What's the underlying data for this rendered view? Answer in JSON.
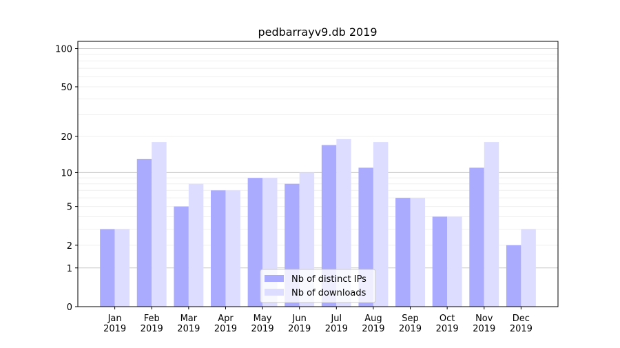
{
  "chart_data": {
    "type": "bar",
    "title": "pedbarrayv9.db 2019",
    "xlabel": "",
    "ylabel": "",
    "yscale": "log(1+y)",
    "ylim": [
      0,
      114
    ],
    "yticks": [
      0,
      1,
      2,
      5,
      10,
      20,
      50,
      100
    ],
    "grid": true,
    "legend_position": "bottom-center",
    "categories": [
      "Jan\n2019",
      "Feb\n2019",
      "Mar\n2019",
      "Apr\n2019",
      "May\n2019",
      "Jun\n2019",
      "Jul\n2019",
      "Aug\n2019",
      "Sep\n2019",
      "Oct\n2019",
      "Nov\n2019",
      "Dec\n2019"
    ],
    "series": [
      {
        "name": "Nb of distinct IPs",
        "color": "#aaaaff",
        "values": [
          3,
          13,
          5,
          7,
          9,
          8,
          17,
          11,
          6,
          4,
          11,
          2
        ]
      },
      {
        "name": "Nb of downloads",
        "color": "#ddddff",
        "values": [
          3,
          18,
          8,
          7,
          9,
          10,
          19,
          18,
          6,
          4,
          18,
          3
        ]
      }
    ]
  }
}
